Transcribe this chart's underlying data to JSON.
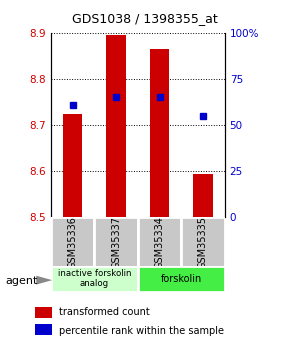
{
  "title": "GDS1038 / 1398355_at",
  "samples": [
    "GSM35336",
    "GSM35337",
    "GSM35334",
    "GSM35335"
  ],
  "bar_values": [
    8.725,
    8.895,
    8.865,
    8.593
  ],
  "percentile_values": [
    61,
    65,
    65,
    55
  ],
  "y_min": 8.5,
  "y_max": 8.9,
  "y_ticks": [
    8.5,
    8.6,
    8.7,
    8.8,
    8.9
  ],
  "y2_ticks": [
    0,
    25,
    50,
    75,
    100
  ],
  "bar_color": "#cc0000",
  "dot_color": "#0000cc",
  "group1_label": "inactive forskolin\nanalog",
  "group2_label": "forskolin",
  "group1_color": "#ccffcc",
  "group2_color": "#44ee44",
  "sample_box_color": "#c8c8c8",
  "legend_bar_label": "transformed count",
  "legend_dot_label": "percentile rank within the sample",
  "agent_label": "agent"
}
